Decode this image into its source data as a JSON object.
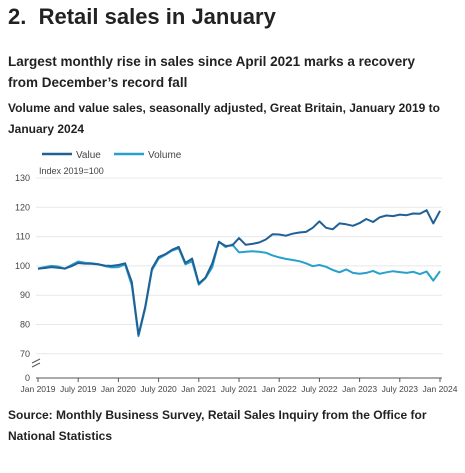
{
  "section": {
    "number": "2.",
    "title": "Retail sales in January"
  },
  "subtitle": "Largest monthly rise in sales since April 2021 marks a recovery from December’s record fall",
  "description": "Volume and value sales, seasonally adjusted, Great Britain, January 2019 to January 2024",
  "source": "Source: Monthly Business Survey, Retail Sales Inquiry from the Office for National Statistics",
  "colors": {
    "value": "#206095",
    "volume": "#27a0cc",
    "grid": "#e8e8e8",
    "axis": "#555555"
  },
  "chart_data": {
    "type": "line",
    "index_label": "Index 2019=100",
    "x": [
      "Jan 2019",
      "Feb 2019",
      "Mar 2019",
      "Apr 2019",
      "May 2019",
      "Jun 2019",
      "Jul 2019",
      "Aug 2019",
      "Sep 2019",
      "Oct 2019",
      "Nov 2019",
      "Dec 2019",
      "Jan 2020",
      "Feb 2020",
      "Mar 2020",
      "Apr 2020",
      "May 2020",
      "Jun 2020",
      "Jul 2020",
      "Aug 2020",
      "Sep 2020",
      "Oct 2020",
      "Nov 2020",
      "Dec 2020",
      "Jan 2021",
      "Feb 2021",
      "Mar 2021",
      "Apr 2021",
      "May 2021",
      "Jun 2021",
      "Jul 2021",
      "Aug 2021",
      "Sep 2021",
      "Oct 2021",
      "Nov 2021",
      "Dec 2021",
      "Jan 2022",
      "Feb 2022",
      "Mar 2022",
      "Apr 2022",
      "May 2022",
      "Jun 2022",
      "Jul 2022",
      "Aug 2022",
      "Sep 2022",
      "Oct 2022",
      "Nov 2022",
      "Dec 2022",
      "Jan 2023",
      "Feb 2023",
      "Mar 2023",
      "Apr 2023",
      "May 2023",
      "Jun 2023",
      "Jul 2023",
      "Aug 2023",
      "Sep 2023",
      "Oct 2023",
      "Nov 2023",
      "Dec 2023",
      "Jan 2024"
    ],
    "x_ticks": [
      "Jan 2019",
      "July 2019",
      "Jan 2020",
      "July 2020",
      "Jan 2021",
      "July 2021",
      "Jan 2022",
      "July 2022",
      "Jan 2023",
      "July 2023",
      "Jan 2024"
    ],
    "y_ticks": [
      0,
      70,
      80,
      90,
      100,
      110,
      120,
      130
    ],
    "ylim": [
      70,
      130
    ],
    "axis_break": true,
    "legend_position": "top-left",
    "series": [
      {
        "name": "Value",
        "key": "value",
        "values": [
          99.0,
          99.3,
          99.6,
          99.4,
          99.1,
          99.9,
          101.0,
          100.8,
          100.7,
          100.5,
          100.1,
          100.0,
          100.3,
          100.9,
          94.5,
          76.5,
          86.0,
          99.0,
          103.0,
          104.0,
          105.5,
          106.5,
          101.0,
          102.5,
          94.0,
          96.0,
          100.8,
          108.2,
          106.8,
          107.0,
          109.5,
          107.2,
          107.5,
          108.0,
          109.0,
          110.8,
          110.7,
          110.3,
          111.0,
          111.4,
          111.6,
          113.0,
          115.2,
          113.0,
          112.5,
          114.5,
          114.2,
          113.7,
          114.6,
          116.0,
          115.0,
          116.6,
          117.2,
          117.0,
          117.5,
          117.3,
          117.9,
          117.8,
          119.0,
          114.5,
          118.8
        ]
      },
      {
        "name": "Volume",
        "key": "volume",
        "values": [
          99.1,
          99.6,
          100.0,
          99.8,
          99.0,
          100.3,
          101.5,
          101.1,
          100.9,
          100.6,
          99.9,
          99.5,
          99.6,
          100.5,
          93.3,
          76.0,
          85.5,
          98.5,
          102.5,
          103.8,
          105.2,
          106.0,
          100.5,
          101.6,
          93.6,
          95.8,
          99.5,
          108.3,
          106.4,
          107.3,
          104.6,
          104.8,
          105.0,
          104.8,
          104.5,
          103.6,
          102.9,
          102.4,
          102.0,
          101.6,
          100.9,
          99.9,
          100.3,
          99.7,
          98.6,
          97.8,
          98.8,
          97.6,
          97.3,
          97.6,
          98.3,
          97.3,
          97.8,
          98.2,
          97.9,
          97.6,
          98.0,
          97.2,
          98.1,
          95.0,
          98.2
        ]
      }
    ]
  }
}
